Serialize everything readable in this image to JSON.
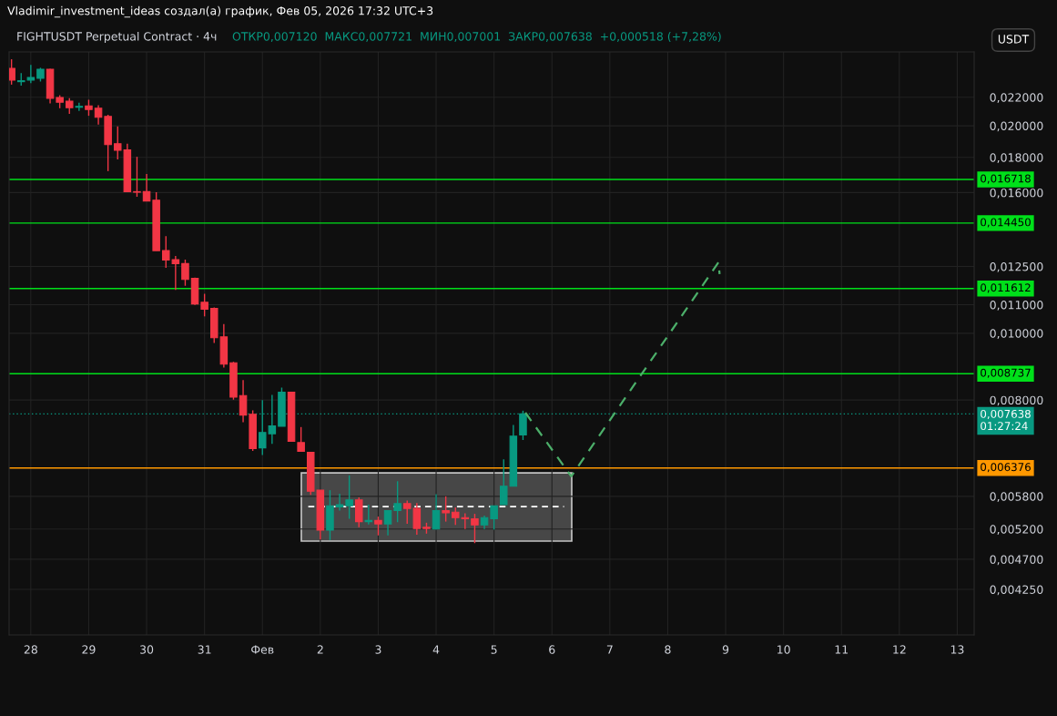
{
  "chart_data": {
    "type": "candlestick",
    "title": "Vladimir_investment_ideas создал(а) график, Фев 05, 2026 17:32 UTC+3",
    "subtitle": "FIGHTUSDT Perpetual Contract · 4ч",
    "annotations": [
      "ОТКР0,007120  МАКС0,007721  МИН0,007001  ЗАКР0,007638  +0,000518 (+7,28%)",
      "USDT"
    ],
    "x": [
      "2026-01-27T16:00",
      "2026-01-27T20:00",
      "2026-01-28T00:00",
      "2026-01-28T04:00",
      "2026-01-28T08:00",
      "2026-01-28T12:00",
      "2026-01-28T16:00",
      "2026-01-28T20:00",
      "2026-01-29T00:00",
      "2026-01-29T04:00",
      "2026-01-29T08:00",
      "2026-01-29T12:00",
      "2026-01-29T16:00",
      "2026-01-29T20:00",
      "2026-01-30T00:00",
      "2026-01-30T04:00",
      "2026-01-30T08:00",
      "2026-01-30T12:00",
      "2026-01-30T16:00",
      "2026-01-30T20:00",
      "2026-01-31T00:00",
      "2026-01-31T04:00",
      "2026-01-31T08:00",
      "2026-01-31T12:00",
      "2026-01-31T16:00",
      "2026-01-31T20:00",
      "2026-02-01T00:00",
      "2026-02-01T04:00",
      "2026-02-01T08:00",
      "2026-02-01T12:00",
      "2026-02-01T16:00",
      "2026-02-01T20:00",
      "2026-02-02T00:00",
      "2026-02-02T04:00",
      "2026-02-02T08:00",
      "2026-02-02T12:00",
      "2026-02-02T16:00",
      "2026-02-02T20:00",
      "2026-02-03T00:00",
      "2026-02-03T04:00",
      "2026-02-03T08:00",
      "2026-02-03T12:00",
      "2026-02-03T16:00",
      "2026-02-03T20:00",
      "2026-02-04T00:00",
      "2026-02-04T04:00",
      "2026-02-04T08:00",
      "2026-02-04T12:00",
      "2026-02-04T16:00",
      "2026-02-04T20:00",
      "2026-02-05T00:00",
      "2026-02-05T04:00",
      "2026-02-05T08:00",
      "2026-02-05T12:00"
    ],
    "ohlc": [
      [
        0.02423,
        0.02498,
        0.02295,
        0.0233
      ],
      [
        0.02318,
        0.02386,
        0.02288,
        0.02325
      ],
      [
        0.0233,
        0.02452,
        0.02307,
        0.02351
      ],
      [
        0.02344,
        0.02428,
        0.02319,
        0.02416
      ],
      [
        0.02416,
        0.0242,
        0.02156,
        0.02193
      ],
      [
        0.02199,
        0.02215,
        0.02121,
        0.02164
      ],
      [
        0.02171,
        0.02193,
        0.02081,
        0.02125
      ],
      [
        0.02128,
        0.0216,
        0.02102,
        0.02134
      ],
      [
        0.02138,
        0.02182,
        0.02068,
        0.02112
      ],
      [
        0.02121,
        0.02143,
        0.02008,
        0.02058
      ],
      [
        0.02064,
        0.02075,
        0.01719,
        0.01878
      ],
      [
        0.01884,
        0.01996,
        0.01787,
        0.01843
      ],
      [
        0.01846,
        0.01884,
        0.01605,
        0.01605
      ],
      [
        0.01605,
        0.01803,
        0.01578,
        0.01602
      ],
      [
        0.01605,
        0.01703,
        0.01556,
        0.01556
      ],
      [
        0.0156,
        0.01602,
        0.01318,
        0.01318
      ],
      [
        0.01318,
        0.01383,
        0.01244,
        0.01277
      ],
      [
        0.01279,
        0.01295,
        0.01156,
        0.01262
      ],
      [
        0.01262,
        0.01279,
        0.01172,
        0.01197
      ],
      [
        0.01201,
        0.01204,
        0.01099,
        0.01103
      ],
      [
        0.01109,
        0.01141,
        0.01058,
        0.01084
      ],
      [
        0.01087,
        0.0109,
        0.00968,
        0.00985
      ],
      [
        0.00988,
        0.01031,
        0.00892,
        0.00902
      ],
      [
        0.00906,
        0.00909,
        0.00801,
        0.00808
      ],
      [
        0.00812,
        0.00855,
        0.00743,
        0.00761
      ],
      [
        0.00763,
        0.00773,
        0.00675,
        0.0068
      ],
      [
        0.00682,
        0.008,
        0.00666,
        0.00718
      ],
      [
        0.00715,
        0.00814,
        0.00691,
        0.00734
      ],
      [
        0.00733,
        0.00834,
        0.00733,
        0.00821
      ],
      [
        0.00821,
        0.00821,
        0.00697,
        0.00697
      ],
      [
        0.00694,
        0.00731,
        0.00674,
        0.00674
      ],
      [
        0.00672,
        0.00672,
        0.00583,
        0.0059
      ],
      [
        0.00592,
        0.00592,
        0.00502,
        0.00518
      ],
      [
        0.00518,
        0.00592,
        0.00501,
        0.00562
      ],
      [
        0.0056,
        0.00585,
        0.00553,
        0.00564
      ],
      [
        0.00562,
        0.00622,
        0.00538,
        0.00573
      ],
      [
        0.00573,
        0.00578,
        0.00523,
        0.00533
      ],
      [
        0.00533,
        0.00564,
        0.00528,
        0.00535
      ],
      [
        0.00535,
        0.00542,
        0.00509,
        0.00529
      ],
      [
        0.00529,
        0.00553,
        0.00509,
        0.00553
      ],
      [
        0.00553,
        0.0061,
        0.00532,
        0.00566
      ],
      [
        0.00566,
        0.00572,
        0.00529,
        0.00557
      ],
      [
        0.00557,
        0.00567,
        0.0051,
        0.00521
      ],
      [
        0.00523,
        0.00531,
        0.00512,
        0.00521
      ],
      [
        0.0052,
        0.00584,
        0.00519,
        0.00553
      ],
      [
        0.00553,
        0.0058,
        0.00533,
        0.00549
      ],
      [
        0.0055,
        0.00559,
        0.00527,
        0.0054
      ],
      [
        0.0054,
        0.00548,
        0.0052,
        0.00538
      ],
      [
        0.00538,
        0.00547,
        0.00496,
        0.00527
      ],
      [
        0.00527,
        0.00544,
        0.0052,
        0.0054
      ],
      [
        0.00538,
        0.00562,
        0.00519,
        0.00562
      ],
      [
        0.00564,
        0.00656,
        0.00564,
        0.006
      ],
      [
        0.006,
        0.00736,
        0.006,
        0.00709
      ],
      [
        0.00712,
        0.007721,
        0.007001,
        0.007638
      ]
    ],
    "colors": [
      "#f23645",
      "#089981",
      "#089981",
      "#089981",
      "#f23645",
      "#f23645",
      "#f23645",
      "#089981",
      "#f23645",
      "#f23645",
      "#f23645",
      "#f23645",
      "#f23645",
      "#f23645",
      "#f23645",
      "#f23645",
      "#f23645",
      "#f23645",
      "#f23645",
      "#f23645",
      "#f23645",
      "#f23645",
      "#f23645",
      "#f23645",
      "#f23645",
      "#f23645",
      "#089981",
      "#089981",
      "#089981",
      "#f23645",
      "#f23645",
      "#f23645",
      "#f23645",
      "#089981",
      "#089981",
      "#089981",
      "#f23645",
      "#089981",
      "#f23645",
      "#089981",
      "#089981",
      "#f23645",
      "#f23645",
      "#f23645",
      "#089981",
      "#f23645",
      "#f23645",
      "#f23645",
      "#f23645",
      "#089981",
      "#089981",
      "#089981",
      "#089981",
      "#089981"
    ],
    "series": [
      {
        "type": "line",
        "color": "#4caf6a",
        "line_style": "dashed",
        "x": [
          "2026-02-05T13:00",
          "2026-02-06T08:00",
          "2026-02-08T21:00",
          "2026-02-08T21:30"
        ],
        "values": [
          0.00767,
          0.0062,
          0.01267,
          0.01219
        ]
      }
    ],
    "ref_lines": [
      {
        "axis": "y",
        "value": 0.016718,
        "label": "0,016718",
        "color": "#00e01a",
        "line_style": "solid"
      },
      {
        "axis": "y",
        "value": 0.01445,
        "label": "0,014450",
        "color": "#00e01a",
        "line_style": "solid"
      },
      {
        "axis": "y",
        "value": 0.011612,
        "label": "0,011612",
        "color": "#00e01a",
        "line_style": "solid"
      },
      {
        "axis": "y",
        "value": 0.008737,
        "label": "0,008737",
        "color": "#00e01a",
        "line_style": "solid"
      },
      {
        "axis": "y",
        "value": 0.007638,
        "label": "0,007638\n01:27:24",
        "color": "#089981",
        "line_style": "dotted"
      },
      {
        "axis": "y",
        "value": 0.006376,
        "label": "0,006376",
        "color": "#ff9800",
        "line_style": "solid"
      }
    ],
    "log": "y",
    "ylim": [
      0.00365,
      0.0256
    ],
    "yticks": [
      {
        "value": 0.022,
        "label": "0,022000"
      },
      {
        "value": 0.02,
        "label": "0,020000"
      },
      {
        "value": 0.018,
        "label": "0,018000"
      },
      {
        "value": 0.016,
        "label": "0,016000"
      },
      {
        "value": 0.0125,
        "label": "0,012500"
      },
      {
        "value": 0.011,
        "label": "0,011000"
      },
      {
        "value": 0.01,
        "label": "0,010000"
      },
      {
        "value": 0.008,
        "label": "0,008000"
      },
      {
        "value": 0.0058,
        "label": "0,005800"
      },
      {
        "value": 0.0052,
        "label": "0,005200"
      },
      {
        "value": 0.0047,
        "label": "0,004700"
      },
      {
        "value": 0.00425,
        "label": "0,004250"
      }
    ],
    "xlim": [
      "2026-01-27T15:00",
      "2026-02-13T07:00"
    ],
    "xticks": [
      {
        "value": "2026-01-28",
        "label": "28"
      },
      {
        "value": "2026-01-29",
        "label": "29"
      },
      {
        "value": "2026-01-30",
        "label": "30"
      },
      {
        "value": "2026-01-31",
        "label": "31"
      },
      {
        "value": "2026-02-01",
        "label": "Фев"
      },
      {
        "value": "2026-02-02",
        "label": "2"
      },
      {
        "value": "2026-02-03",
        "label": "3"
      },
      {
        "value": "2026-02-04",
        "label": "4"
      },
      {
        "value": "2026-02-05",
        "label": "5"
      },
      {
        "value": "2026-02-06",
        "label": "6"
      },
      {
        "value": "2026-02-07",
        "label": "7"
      },
      {
        "value": "2026-02-08",
        "label": "8"
      },
      {
        "value": "2026-02-09",
        "label": "9"
      },
      {
        "value": "2026-02-10",
        "label": "10"
      },
      {
        "value": "2026-02-11",
        "label": "11"
      },
      {
        "value": "2026-02-12",
        "label": "12"
      },
      {
        "value": "2026-02-13",
        "label": "13"
      }
    ],
    "grid": true,
    "legend": false
  }
}
